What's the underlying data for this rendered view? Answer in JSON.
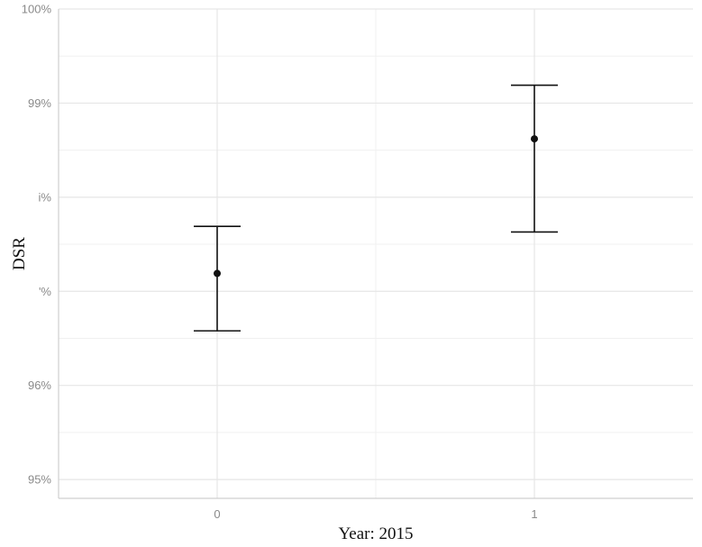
{
  "chart_data": {
    "type": "scatter",
    "xlabel": "Year:  2015",
    "ylabel": "DSR",
    "categories": [
      "0",
      "1"
    ],
    "ylim": [
      0.948,
      1.0
    ],
    "y_ticks": [
      {
        "value": 0.95,
        "label": "95%"
      },
      {
        "value": 0.96,
        "label": "96%"
      },
      {
        "value": 0.97,
        "label": "'%"
      },
      {
        "value": 0.98,
        "label": "i%"
      },
      {
        "value": 0.99,
        "label": "99%"
      },
      {
        "value": 1.0,
        "label": "100%"
      }
    ],
    "series": [
      {
        "points": [
          {
            "x": "0",
            "y": 0.9719,
            "lower": 0.9658,
            "upper": 0.9769
          },
          {
            "x": "1",
            "y": 0.9862,
            "lower": 0.9763,
            "upper": 0.9919
          }
        ]
      }
    ],
    "grid": true,
    "legend": "none",
    "colors": {
      "point": "#111111",
      "grid": "#e6e6e6",
      "tick_text": "#8a8a8a"
    }
  }
}
